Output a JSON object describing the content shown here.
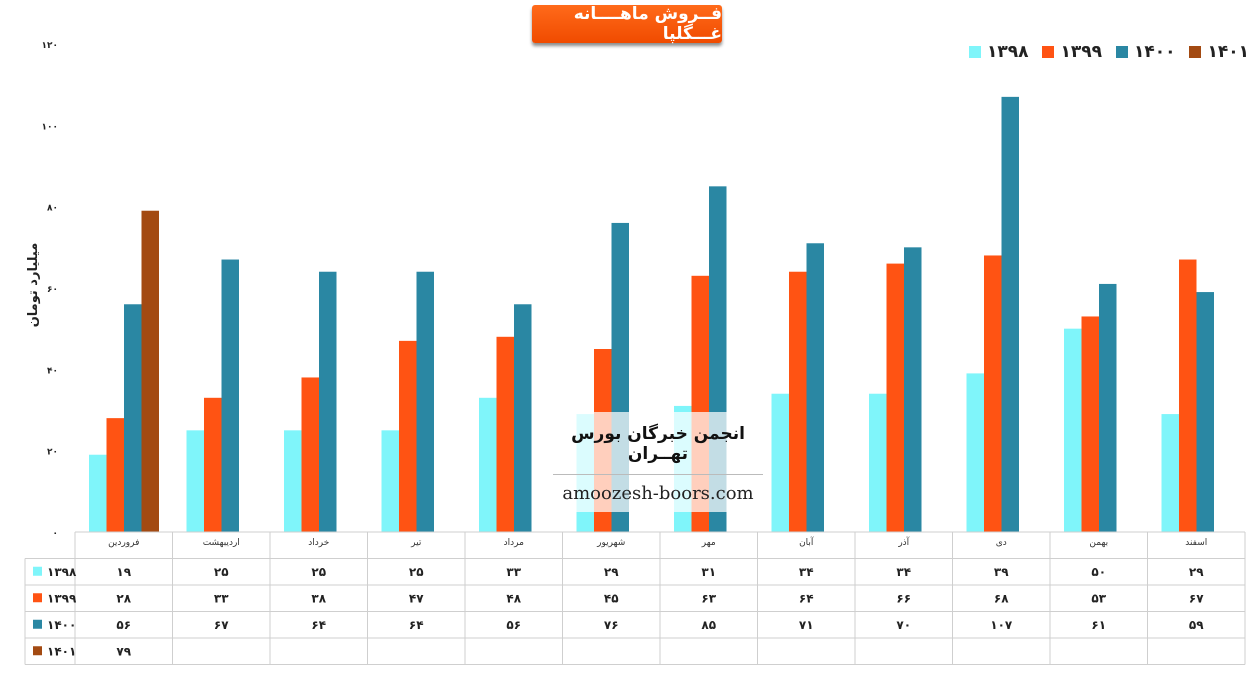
{
  "title": "فــروش ماهــــانه غـــگلپا",
  "ylabel": "میلیارد تومان",
  "watermark": {
    "title": "انجمن خبرگان بورس تهــران",
    "url": "amoozesh-boors.com"
  },
  "chart_data": {
    "type": "bar",
    "title": "فــروش ماهــــانه غـــگلپا",
    "ylabel": "میلیارد تومان",
    "xlabel": "",
    "ylim": [
      0,
      120
    ],
    "yticks": [
      0,
      20,
      40,
      60,
      80,
      100,
      120
    ],
    "ytick_labels": [
      "۰",
      "۲۰",
      "۴۰",
      "۶۰",
      "۸۰",
      "۱۰۰",
      "۱۲۰"
    ],
    "legend_position": "top-right",
    "categories": [
      "فروردین",
      "اردیبهشت",
      "خرداد",
      "تیر",
      "مرداد",
      "شهریور",
      "مهر",
      "آبان",
      "آذر",
      "دی",
      "بهمن",
      "اسفند"
    ],
    "series": [
      {
        "name": "۱۳۹۸",
        "color": "#7ff5fa",
        "values": [
          19,
          25,
          25,
          25,
          33,
          29,
          31,
          34,
          34,
          39,
          50,
          29
        ],
        "labels": [
          "۱۹",
          "۲۵",
          "۲۵",
          "۲۵",
          "۳۳",
          "۲۹",
          "۳۱",
          "۳۴",
          "۳۴",
          "۳۹",
          "۵۰",
          "۲۹"
        ]
      },
      {
        "name": "۱۳۹۹",
        "color": "#ff5313",
        "values": [
          28,
          33,
          38,
          47,
          48,
          45,
          63,
          64,
          66,
          68,
          53,
          67
        ],
        "labels": [
          "۲۸",
          "۳۳",
          "۳۸",
          "۴۷",
          "۴۸",
          "۴۵",
          "۶۳",
          "۶۴",
          "۶۶",
          "۶۸",
          "۵۳",
          "۶۷"
        ]
      },
      {
        "name": "۱۴۰۰",
        "color": "#2a87a3",
        "values": [
          56,
          67,
          64,
          64,
          56,
          76,
          85,
          71,
          70,
          107,
          61,
          59
        ],
        "labels": [
          "۵۶",
          "۶۷",
          "۶۴",
          "۶۴",
          "۵۶",
          "۷۶",
          "۸۵",
          "۷۱",
          "۷۰",
          "۱۰۷",
          "۶۱",
          "۵۹"
        ]
      },
      {
        "name": "۱۴۰۱",
        "color": "#a34a12",
        "values": [
          79,
          null,
          null,
          null,
          null,
          null,
          null,
          null,
          null,
          null,
          null,
          null
        ],
        "labels": [
          "۷۹",
          "",
          "",
          "",
          "",
          "",
          "",
          "",
          "",
          "",
          "",
          ""
        ]
      }
    ]
  }
}
